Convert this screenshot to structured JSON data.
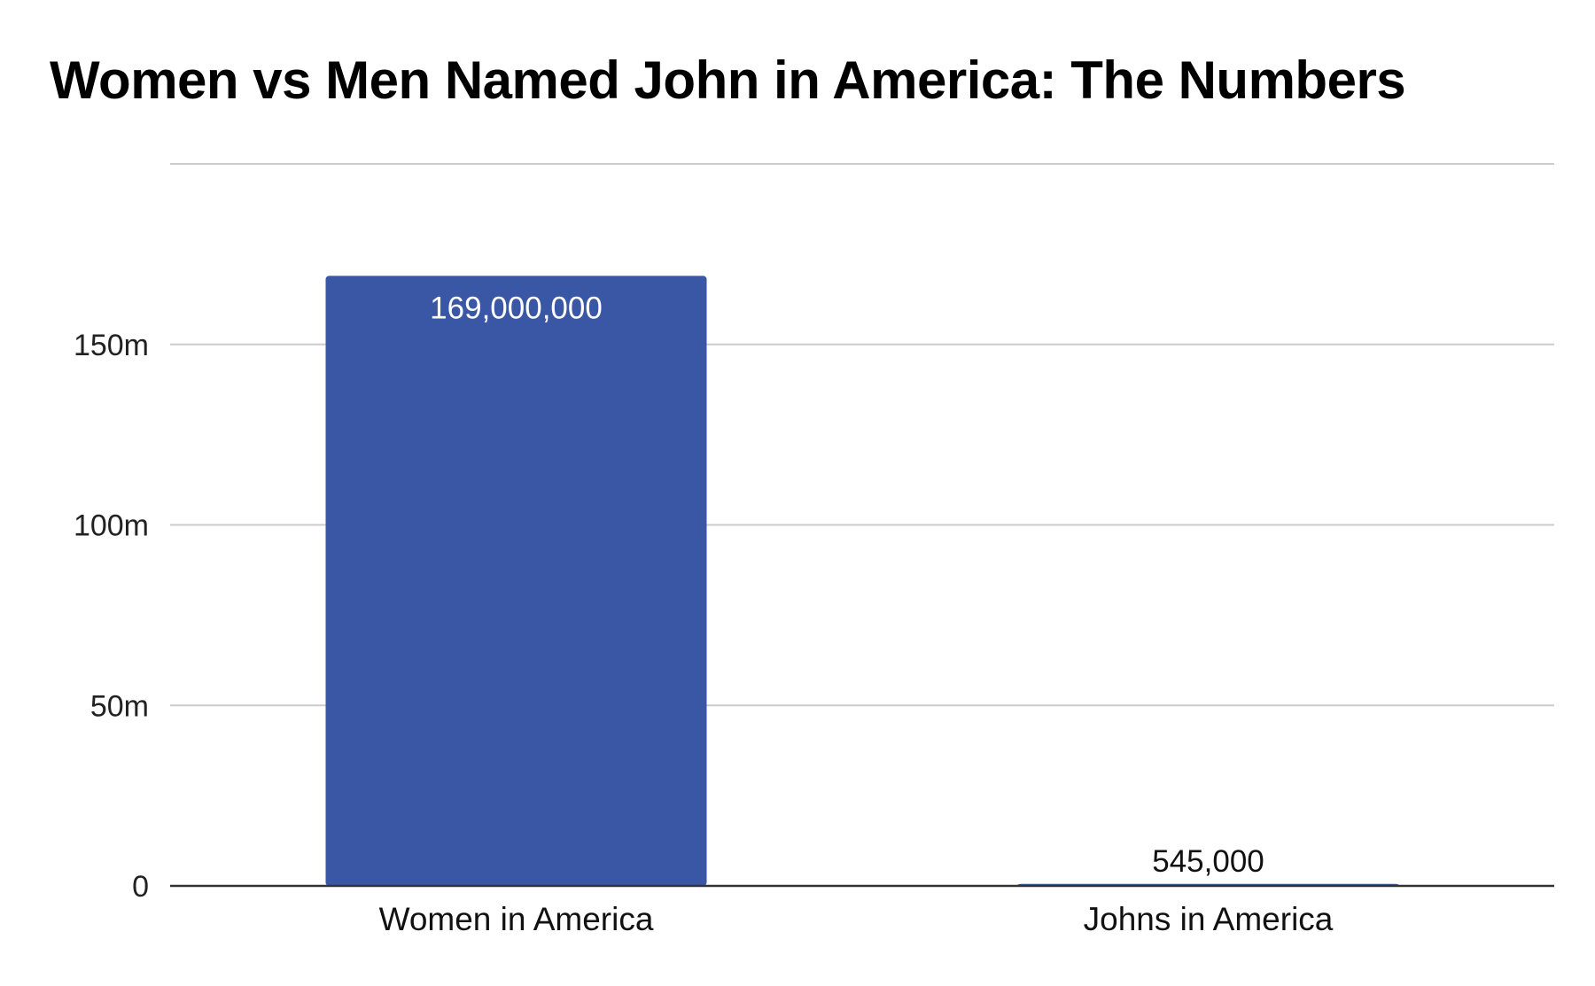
{
  "chart_data": {
    "type": "bar",
    "title": "Women vs Men Named John in America: The Numbers",
    "categories": [
      "Women in America",
      "Johns in America"
    ],
    "values": [
      169000000,
      545000
    ],
    "data_labels": [
      "169,000,000",
      "545,000"
    ],
    "xlabel": "",
    "ylabel": "",
    "ylim": [
      0,
      200000000
    ],
    "yticks": [
      0,
      50000000,
      100000000,
      150000000
    ],
    "ytick_labels": [
      "0",
      "50m",
      "100m",
      "150m"
    ],
    "grid": true,
    "legend": "none",
    "colors": {
      "bar": "#3a57a5",
      "grid": "#cccccc",
      "axis": "#333333",
      "label_inside": "#ffffff",
      "label_outside": "#111111"
    }
  }
}
